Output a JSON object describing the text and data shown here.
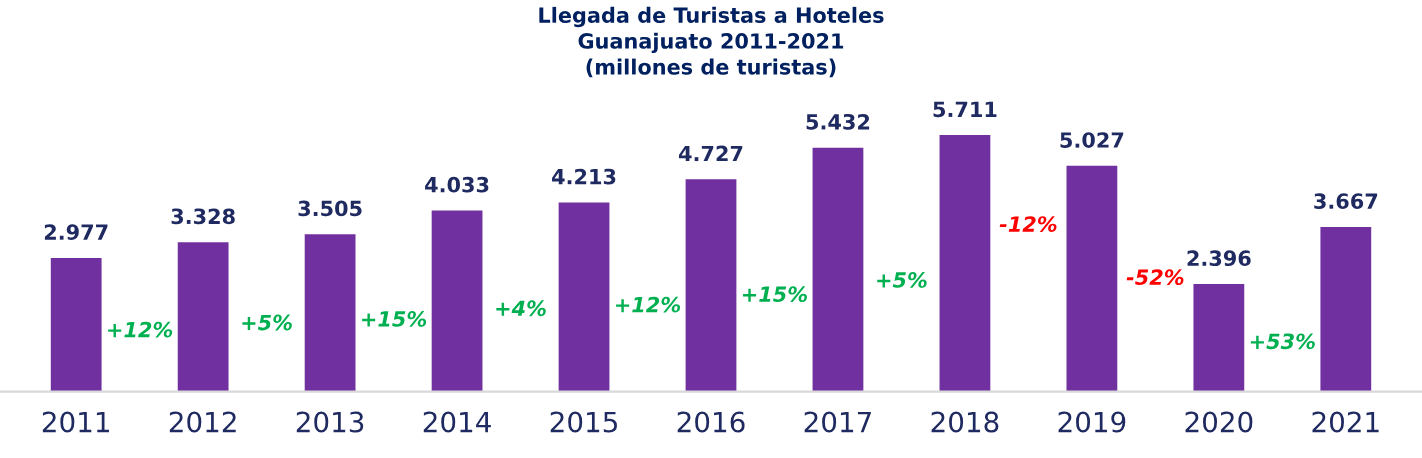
{
  "chart_data": {
    "type": "bar",
    "title": "Llegada de Turistas a Hoteles\nGuanajuato 2011-2021\n(millones de turistas)",
    "categories": [
      "2011",
      "2012",
      "2013",
      "2014",
      "2015",
      "2016",
      "2017",
      "2018",
      "2019",
      "2020",
      "2021"
    ],
    "values": [
      2.977,
      3.328,
      3.505,
      4.033,
      4.213,
      4.727,
      5.432,
      5.711,
      5.027,
      2.396,
      3.667
    ],
    "value_labels": [
      "2.977",
      "3.328",
      "3.505",
      "4.033",
      "4.213",
      "4.727",
      "5.432",
      "5.711",
      "5.027",
      "2.396",
      "3.667"
    ],
    "color": "#7030a0",
    "grid": false,
    "legend": false,
    "annotations": [
      "+12%",
      "+5%",
      "+15%",
      "+4%",
      "+12%",
      "+15%",
      "+5%",
      "-12%",
      "-52%",
      "+53%"
    ]
  }
}
